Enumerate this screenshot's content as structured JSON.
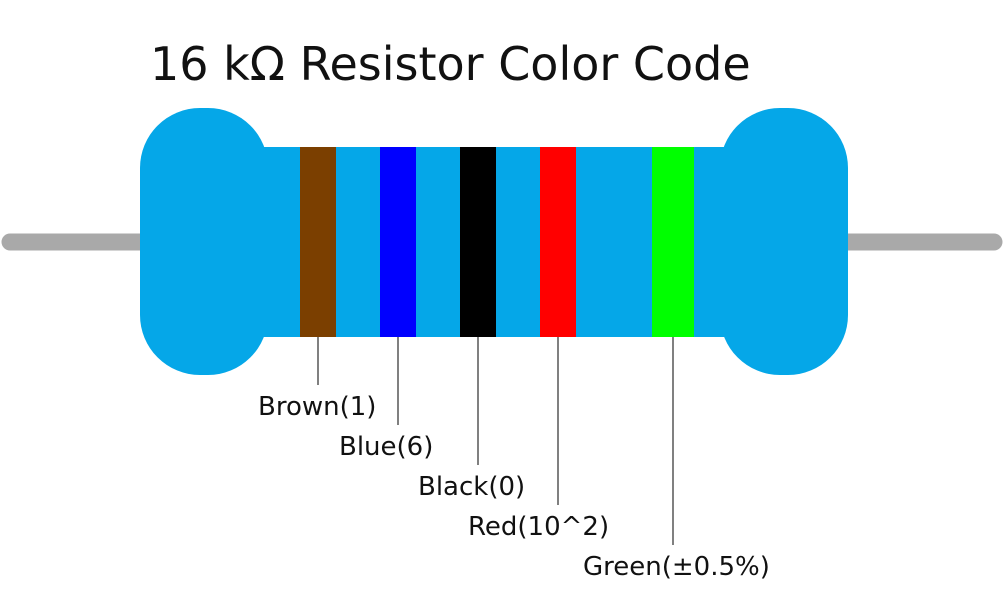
{
  "title": "16 kΩ Resistor Color Code",
  "bands": [
    {
      "label": "Brown(1)",
      "color": "#7b3f00"
    },
    {
      "label": "Blue(6)",
      "color": "#0000ff"
    },
    {
      "label": "Black(0)",
      "color": "#000000"
    },
    {
      "label": "Red(10^2)",
      "color": "#ff0000"
    },
    {
      "label": "Green(±0.5%)",
      "color": "#00ff00"
    }
  ]
}
